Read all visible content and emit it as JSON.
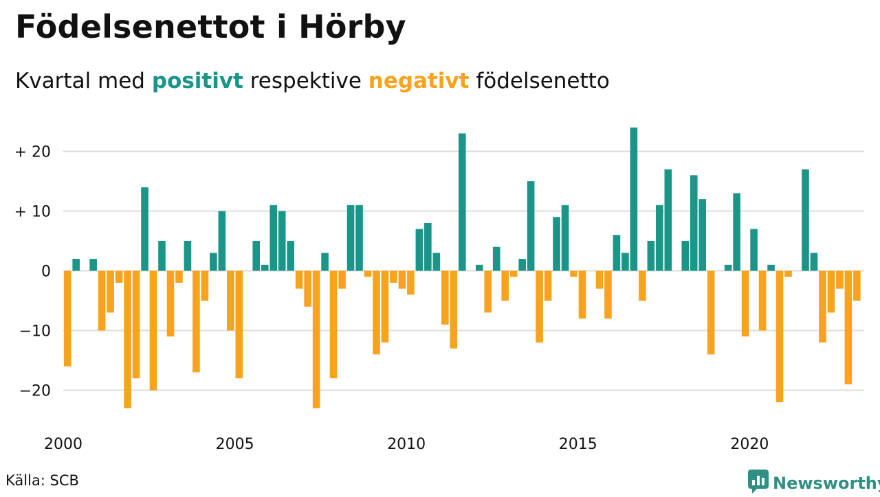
{
  "title": "Födelsenettot i Hörby",
  "subtitle": {
    "pre": "Kvartal med ",
    "positive": "positivt",
    "mid": " respektive ",
    "negative": "negativt",
    "post": " födelsenetto"
  },
  "source": "Källa: SCB",
  "brand": {
    "name": "Newsworthy",
    "icon": "bar-chart-speech-bubble-icon"
  },
  "colors": {
    "positive": "#1a9588",
    "negative": "#f7a31e",
    "grid": "#dddddd",
    "brand": "#2f8f83"
  },
  "chart_data": {
    "type": "bar",
    "title": "Födelsenettot i Hörby",
    "ylim": [
      -26,
      25
    ],
    "y_ticks": [
      {
        "value": 20,
        "label": "+ 20"
      },
      {
        "value": 10,
        "label": "+ 10"
      },
      {
        "value": 0,
        "label": "0"
      },
      {
        "value": -10,
        "label": "−10"
      },
      {
        "value": -20,
        "label": "−20"
      }
    ],
    "x_ticks": [
      "2000",
      "2005",
      "2010",
      "2015",
      "2020"
    ],
    "start_year": 2000,
    "grid": true,
    "series": [
      {
        "values": [
          -16,
          2,
          0,
          2,
          -10,
          -7,
          -2,
          -23,
          -18,
          14,
          -20,
          5,
          -11,
          -2,
          5,
          -17,
          -5,
          3,
          10,
          -10,
          -18,
          0,
          5,
          1,
          11,
          10,
          5,
          -3,
          -6,
          -23,
          3,
          -18,
          -3,
          11,
          11,
          -1,
          -14,
          -12,
          -2,
          -3,
          -4,
          7,
          8,
          3,
          -9,
          -13,
          23,
          0,
          1,
          -7,
          4,
          -5,
          -1,
          2,
          15,
          -12,
          -5,
          9,
          11,
          -1,
          -8,
          0,
          -3,
          -8,
          6,
          3,
          24,
          -5,
          5,
          11,
          17,
          0,
          5,
          16,
          12,
          -14,
          0,
          1,
          13,
          -11,
          7,
          -10,
          1,
          -22,
          -1,
          0,
          17,
          3,
          -12,
          -7,
          -3,
          -19,
          -5
        ]
      }
    ]
  }
}
